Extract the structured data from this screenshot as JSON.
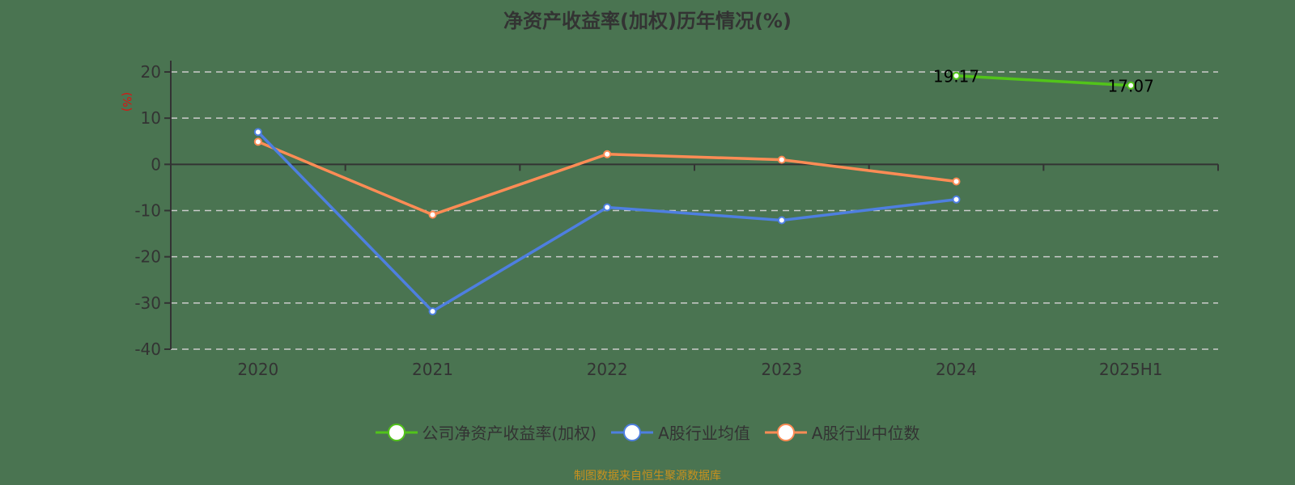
{
  "title": "净资产收益率(加权)历年情况(%)",
  "source": "制图数据来自恒生聚源数据库",
  "y_unit_label": "(%)",
  "colors": {
    "background": "#4a7451",
    "company": "#52c41a",
    "industry_mean": "#4e7fe0",
    "industry_median": "#ff8c55",
    "axis": "#333333",
    "grid": "#cccccc",
    "unit_label": "#e01010",
    "source": "#c8911e"
  },
  "legend": [
    {
      "label": "公司净资产收益率(加权)",
      "color": "#52c41a"
    },
    {
      "label": "A股行业均值",
      "color": "#4e7fe0"
    },
    {
      "label": "A股行业中位数",
      "color": "#ff8c55"
    }
  ],
  "chart_data": {
    "type": "line",
    "title": "净资产收益率(加权)历年情况(%)",
    "xlabel": "",
    "ylabel": "(%)",
    "categories": [
      "2020",
      "2021",
      "2022",
      "2023",
      "2024",
      "2025H1"
    ],
    "ylim": [
      -40,
      20
    ],
    "yticks": [
      20,
      10,
      0,
      -10,
      -20,
      -30,
      -40
    ],
    "grid": true,
    "legend_position": "bottom",
    "series": [
      {
        "name": "公司净资产收益率(加权)",
        "values": [
          null,
          null,
          null,
          null,
          19.17,
          17.07
        ],
        "labels_shown": true
      },
      {
        "name": "A股行业均值",
        "values": [
          7.0,
          -31.8,
          -9.3,
          -12.1,
          -7.6,
          null
        ]
      },
      {
        "name": "A股行业中位数",
        "values": [
          4.9,
          -10.9,
          2.2,
          1.0,
          -3.7,
          null
        ]
      }
    ]
  }
}
